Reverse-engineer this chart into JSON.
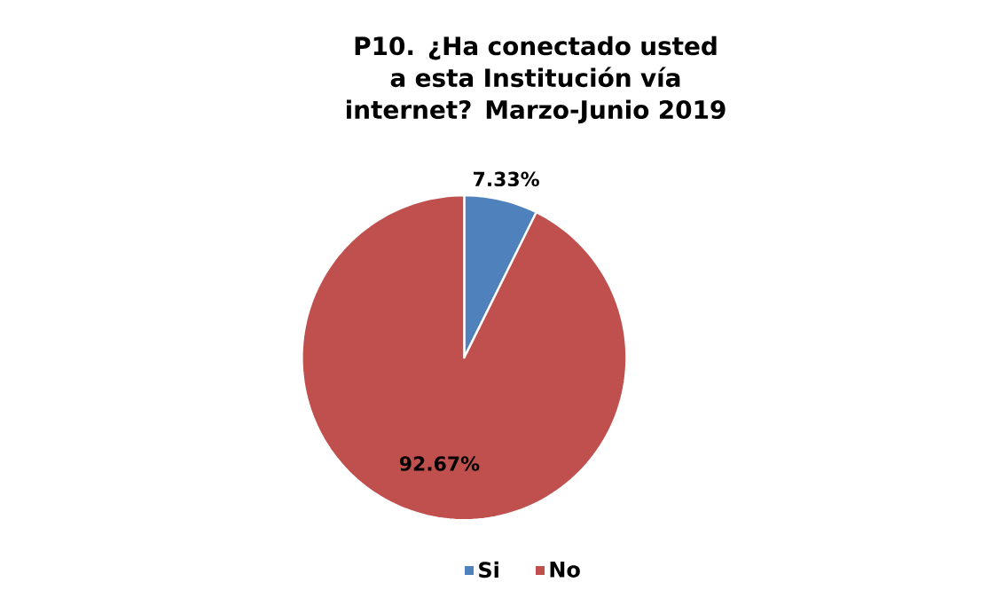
{
  "chart_data": {
    "type": "pie",
    "title": "P10. ¿Ha conectado usted a esta Institución vía internet? Marzo-Junio 2019",
    "categories": [
      "Si",
      "No"
    ],
    "values": [
      7.33,
      92.67
    ],
    "colors": [
      "#4f81bd",
      "#c0504d"
    ],
    "value_labels": [
      "7.33%",
      "92.67%"
    ],
    "legend": "bottom"
  }
}
